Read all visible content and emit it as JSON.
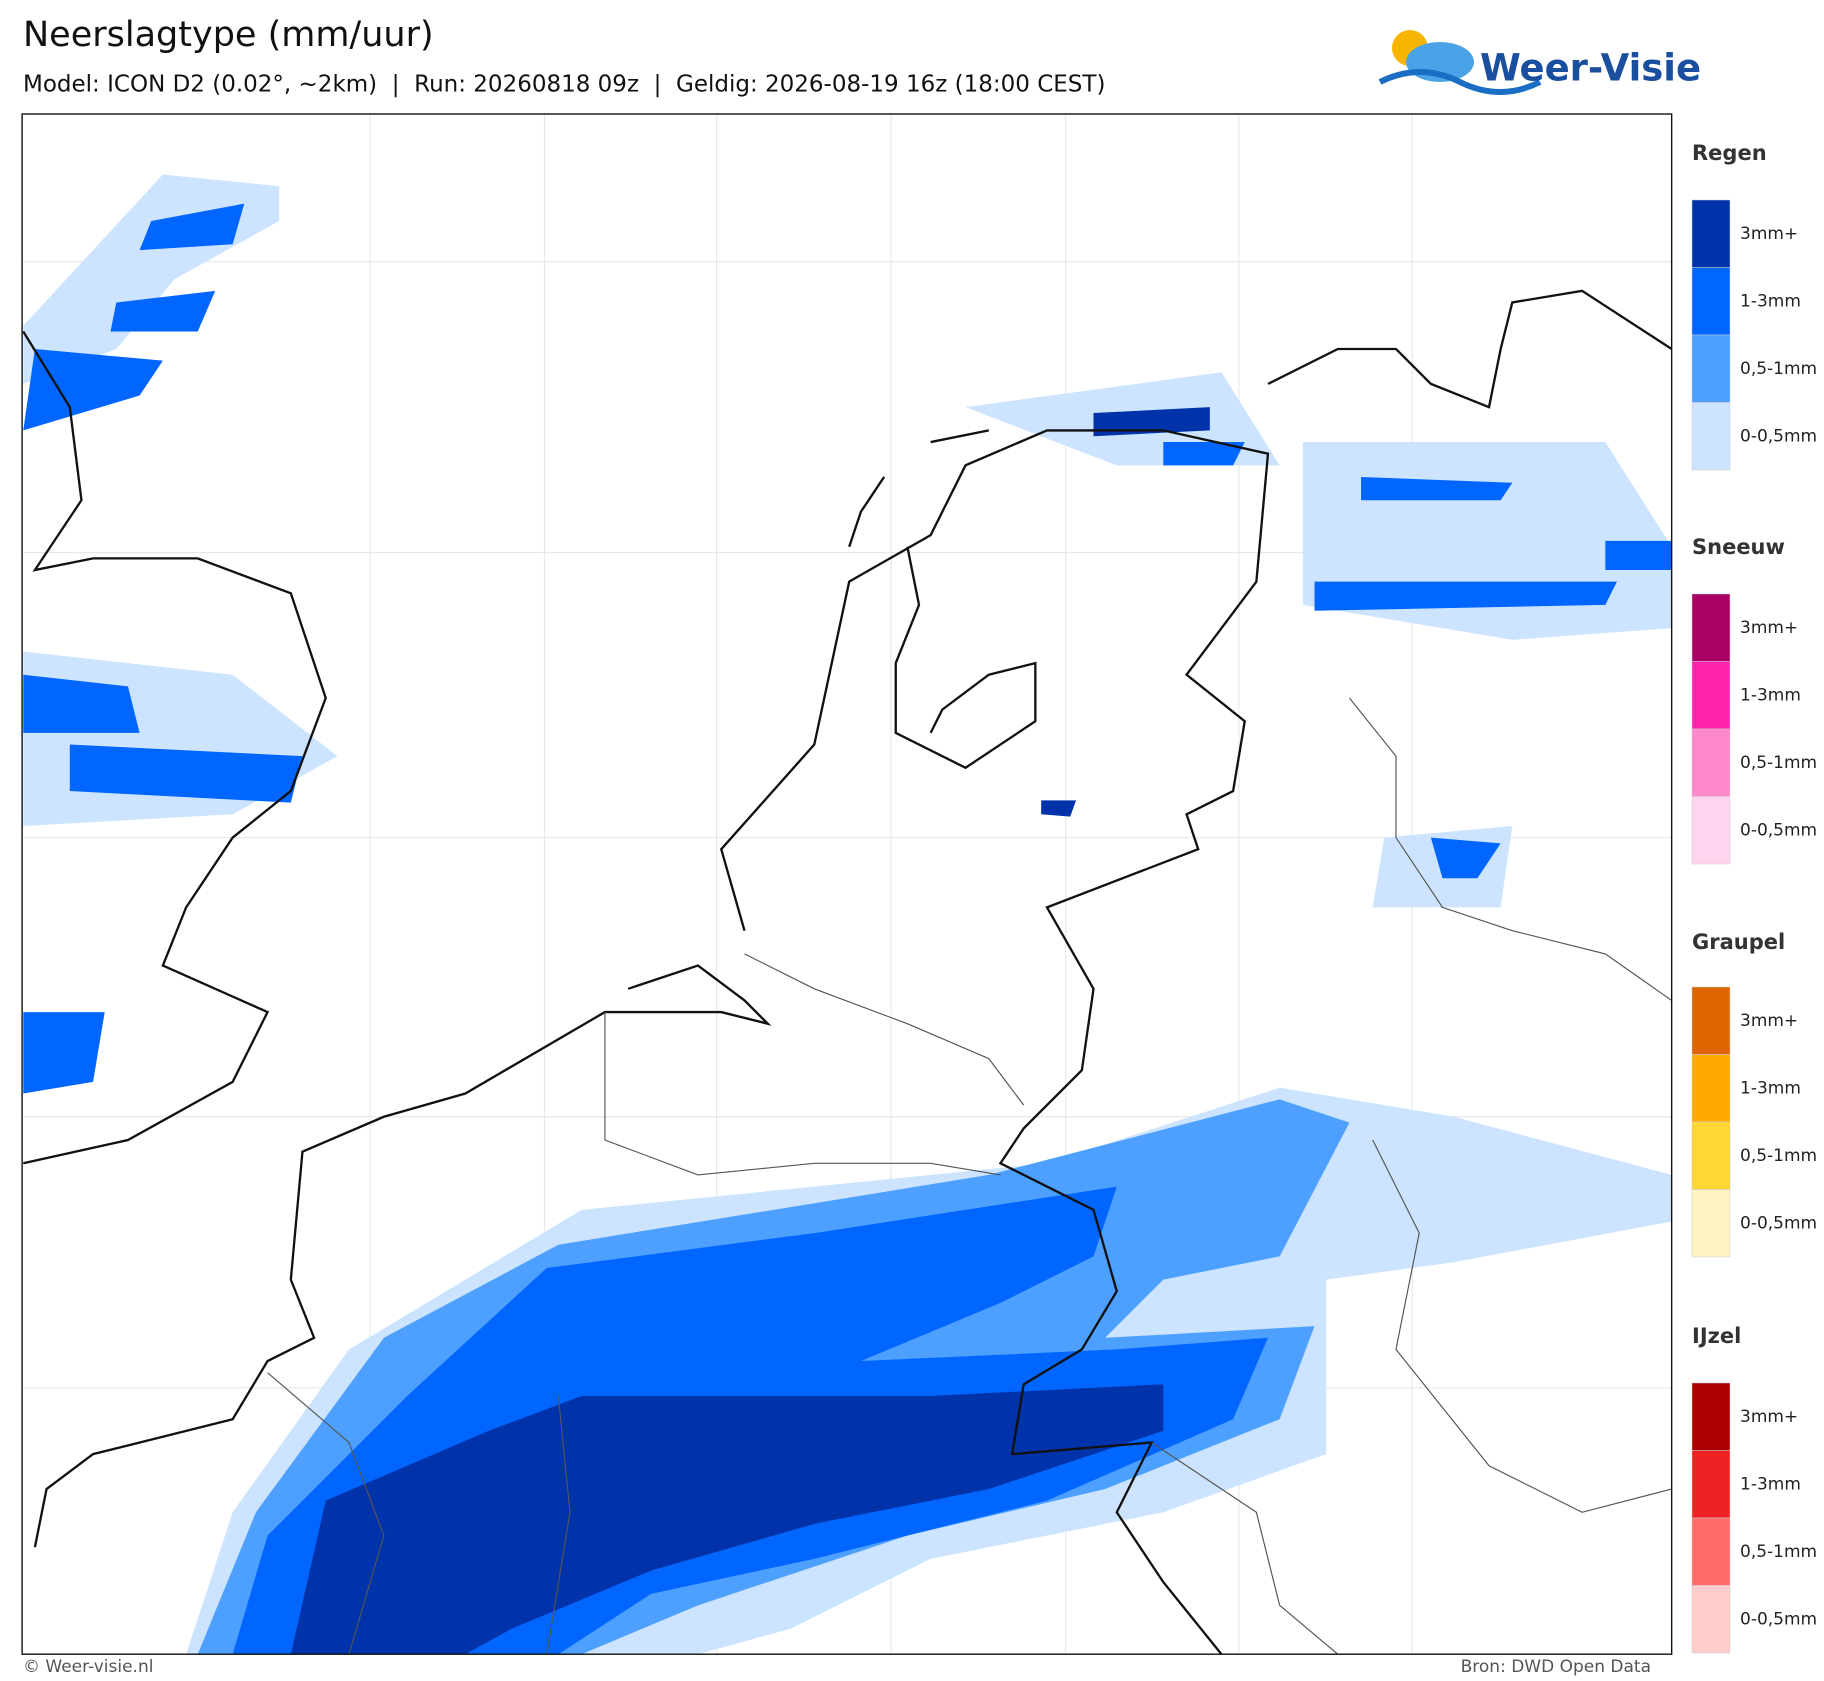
{
  "header": {
    "title": "Neerslagtype (mm/uur)",
    "subtitle": "Model: ICON D2 (0.02°, ~2km)  |  Run: 20260818 09z  |  Geldig: 2026-08-19 16z (18:00 CEST)"
  },
  "logo": {
    "text": "Weer-Visie"
  },
  "legend": {
    "groups": [
      {
        "title": "Regen",
        "items": [
          {
            "label": "3mm+",
            "color": "#0033aa"
          },
          {
            "label": "1-3mm",
            "color": "#0066ff"
          },
          {
            "label": "0,5-1mm",
            "color": "#4da0ff"
          },
          {
            "label": "0-0,5mm",
            "color": "#cce4ff"
          }
        ]
      },
      {
        "title": "Sneeuw",
        "items": [
          {
            "label": "3mm+",
            "color": "#aa0066"
          },
          {
            "label": "1-3mm",
            "color": "#ff22aa"
          },
          {
            "label": "0,5-1mm",
            "color": "#ff88cc"
          },
          {
            "label": "0-0,5mm",
            "color": "#ffd4ee"
          }
        ]
      },
      {
        "title": "Graupel",
        "items": [
          {
            "label": "3mm+",
            "color": "#dd6600"
          },
          {
            "label": "1-3mm",
            "color": "#ffaa00"
          },
          {
            "label": "0,5-1mm",
            "color": "#ffd633"
          },
          {
            "label": "0-0,5mm",
            "color": "#fff2c2"
          }
        ]
      },
      {
        "title": "IJzel",
        "items": [
          {
            "label": "3mm+",
            "color": "#aa0000"
          },
          {
            "label": "1-3mm",
            "color": "#ee2222"
          },
          {
            "label": "0,5-1mm",
            "color": "#ff6b6b"
          },
          {
            "label": "0-0,5mm",
            "color": "#ffcccc"
          }
        ]
      }
    ]
  },
  "footer": {
    "credit": "© Weer-visie.nl",
    "source": "Bron: DWD Open Data"
  }
}
